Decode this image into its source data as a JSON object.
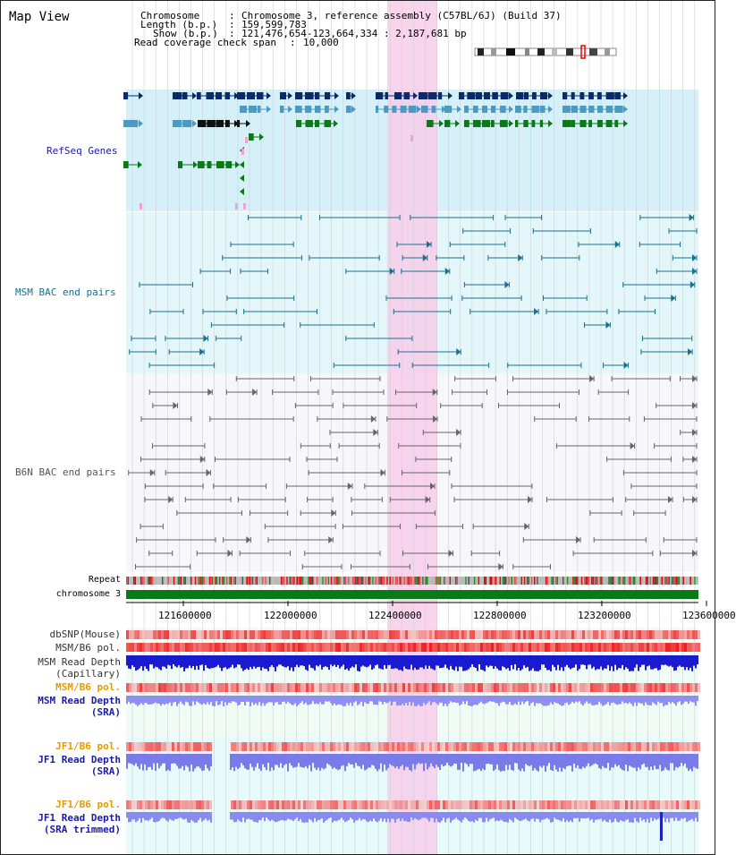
{
  "title": "Map View",
  "info": {
    "chromosome_key": "Chromosome",
    "chromosome_val": "Chromosome 3, reference assembly (C57BL/6J) (Build 37)",
    "length_key": "Length (b.p.)",
    "length_val": "159,599,783",
    "show_key": "Show (b.p.)",
    "show_val": "121,476,654-123,664,334 : 2,187,681 bp",
    "coverage_key": "Read coverage check span",
    "coverage_val": "10,000"
  },
  "tracks": {
    "refseq": "RefSeq Genes",
    "msm_bac": "MSM BAC end pairs",
    "b6n_bac": "B6N BAC end pairs",
    "repeat": "Repeat",
    "chromosome": "chromosome 3",
    "dbsnp": "dbSNP(Mouse)",
    "msm_b6_pol_1": "MSM/B6 pol.",
    "msm_depth_cap_1": "MSM Read Depth",
    "msm_depth_cap_2": "(Capillary)",
    "msm_b6_pol_2": "MSM/B6 pol.",
    "msm_depth_sra_1": "MSM Read Depth",
    "msm_depth_sra_2": "(SRA)",
    "jf1_pol_1": "JF1/B6 pol.",
    "jf1_depth_sra_1": "JF1 Read Depth",
    "jf1_depth_sra_2": "(SRA)",
    "jf1_pol_2": "JF1/B6 pol.",
    "jf1_depth_trim_1": "JF1 Read Depth",
    "jf1_depth_trim_2": "(SRA trimmed)"
  },
  "axis": {
    "ticks": [
      "121600000",
      "122000000",
      "122400000",
      "122800000",
      "123200000",
      "123600000"
    ]
  },
  "colors": {
    "highlight": "#f7cdea",
    "refseq_bg": "#d6f0fa",
    "msm_bg": "#e3f7fa",
    "navy": "#0a2a6a",
    "teal": "#4a9ac2",
    "green": "#0a7a16",
    "track_blue": "#1a1aa8",
    "orange": "#e69a00",
    "msm_line": "#1a6f8f",
    "b6n_line": "#666666"
  }
}
